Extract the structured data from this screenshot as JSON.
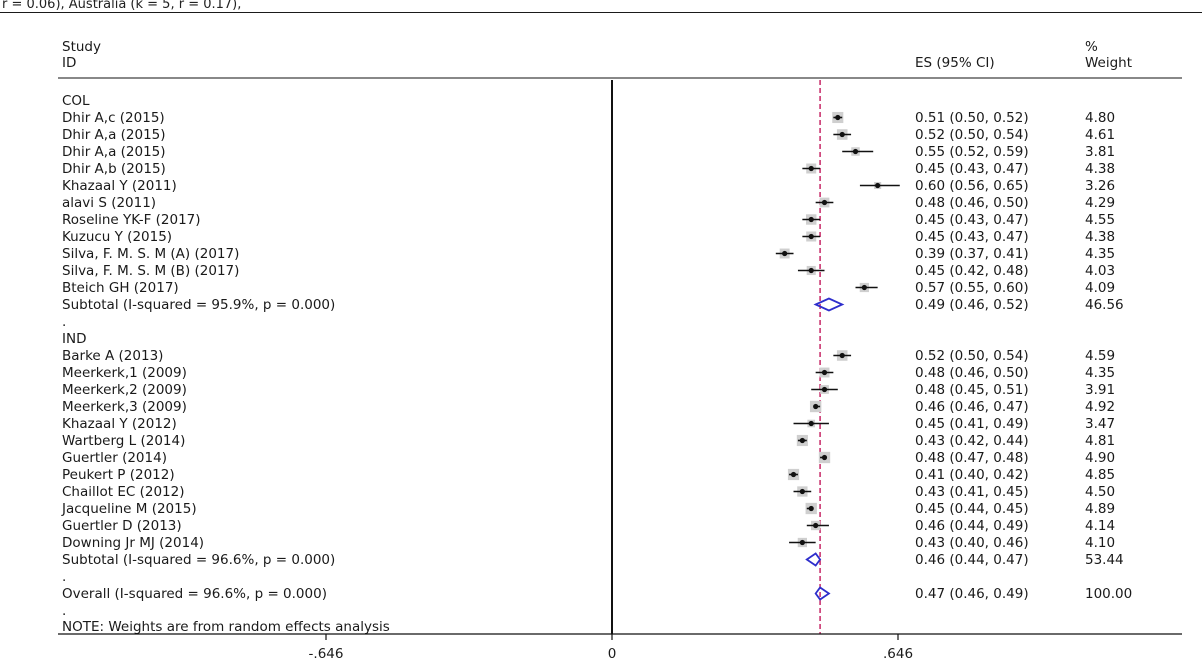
{
  "page": {
    "header_fragment": "   r = 0.06), Australia (k = 5, r = 0.17),"
  },
  "colors": {
    "point": "#111111",
    "box": "#cfcfcf",
    "diamond": "#2e2ecc",
    "reference_line": "#c2185b",
    "axis": "#111111"
  },
  "chart_data": {
    "type": "forest",
    "columns": {
      "study_title_line1": "Study",
      "study_title_line2": "ID",
      "es": "ES (95% CI)",
      "weight_line1": "%",
      "weight_line2": "Weight"
    },
    "xlim": [
      -0.646,
      0.646
    ],
    "xticks": [
      -0.646,
      0,
      0.646
    ],
    "xtick_labels": [
      "-.646",
      "0",
      ".646"
    ],
    "overall_line_x": 0.47,
    "rows": [
      {
        "kind": "header",
        "label": "COL"
      },
      {
        "kind": "study",
        "label": "Dhir A,c (2015)",
        "es": 0.51,
        "lo": 0.5,
        "hi": 0.52,
        "text": "0.51 (0.50, 0.52)",
        "weight": "4.80"
      },
      {
        "kind": "study",
        "label": "Dhir A,a (2015)",
        "es": 0.52,
        "lo": 0.5,
        "hi": 0.54,
        "text": "0.52 (0.50, 0.54)",
        "weight": "4.61"
      },
      {
        "kind": "study",
        "label": "Dhir A,a (2015)",
        "es": 0.55,
        "lo": 0.52,
        "hi": 0.59,
        "text": "0.55 (0.52, 0.59)",
        "weight": "3.81"
      },
      {
        "kind": "study",
        "label": "Dhir A,b (2015)",
        "es": 0.45,
        "lo": 0.43,
        "hi": 0.47,
        "text": "0.45 (0.43, 0.47)",
        "weight": "4.38"
      },
      {
        "kind": "study",
        "label": "Khazaal Y (2011)",
        "es": 0.6,
        "lo": 0.56,
        "hi": 0.65,
        "text": "0.60 (0.56, 0.65)",
        "weight": "3.26"
      },
      {
        "kind": "study",
        "label": "alavi S (2011)",
        "es": 0.48,
        "lo": 0.46,
        "hi": 0.5,
        "text": "0.48 (0.46, 0.50)",
        "weight": "4.29"
      },
      {
        "kind": "study",
        "label": "Roseline YK-F (2017)",
        "es": 0.45,
        "lo": 0.43,
        "hi": 0.47,
        "text": "0.45 (0.43, 0.47)",
        "weight": "4.55"
      },
      {
        "kind": "study",
        "label": "Kuzucu Y (2015)",
        "es": 0.45,
        "lo": 0.43,
        "hi": 0.47,
        "text": "0.45 (0.43, 0.47)",
        "weight": "4.38"
      },
      {
        "kind": "study",
        "label": "Silva, F. M. S. M (A) (2017)",
        "es": 0.39,
        "lo": 0.37,
        "hi": 0.41,
        "text": "0.39 (0.37, 0.41)",
        "weight": "4.35"
      },
      {
        "kind": "study",
        "label": "Silva, F. M. S. M (B) (2017)",
        "es": 0.45,
        "lo": 0.42,
        "hi": 0.48,
        "text": "0.45 (0.42, 0.48)",
        "weight": "4.03"
      },
      {
        "kind": "study",
        "label": "Bteich GH (2017)",
        "es": 0.57,
        "lo": 0.55,
        "hi": 0.6,
        "text": "0.57 (0.55, 0.60)",
        "weight": "4.09"
      },
      {
        "kind": "subtotal",
        "label": "Subtotal  (I-squared = 95.9%, p = 0.000)",
        "es": 0.49,
        "lo": 0.46,
        "hi": 0.52,
        "text": "0.49 (0.46, 0.52)",
        "weight": "46.56"
      },
      {
        "kind": "dot",
        "label": "."
      },
      {
        "kind": "header",
        "label": "IND"
      },
      {
        "kind": "study",
        "label": "Barke A (2013)",
        "es": 0.52,
        "lo": 0.5,
        "hi": 0.54,
        "text": "0.52 (0.50, 0.54)",
        "weight": "4.59"
      },
      {
        "kind": "study",
        "label": "Meerkerk,1 (2009)",
        "es": 0.48,
        "lo": 0.46,
        "hi": 0.5,
        "text": "0.48 (0.46, 0.50)",
        "weight": "4.35"
      },
      {
        "kind": "study",
        "label": "Meerkerk,2 (2009)",
        "es": 0.48,
        "lo": 0.45,
        "hi": 0.51,
        "text": "0.48 (0.45, 0.51)",
        "weight": "3.91"
      },
      {
        "kind": "study",
        "label": "Meerkerk,3 (2009)",
        "es": 0.46,
        "lo": 0.46,
        "hi": 0.47,
        "text": "0.46 (0.46, 0.47)",
        "weight": "4.92"
      },
      {
        "kind": "study",
        "label": "Khazaal Y (2012)",
        "es": 0.45,
        "lo": 0.41,
        "hi": 0.49,
        "text": "0.45 (0.41, 0.49)",
        "weight": "3.47"
      },
      {
        "kind": "study",
        "label": "Wartberg L (2014)",
        "es": 0.43,
        "lo": 0.42,
        "hi": 0.44,
        "text": "0.43 (0.42, 0.44)",
        "weight": "4.81"
      },
      {
        "kind": "study",
        "label": "Guertler (2014)",
        "es": 0.48,
        "lo": 0.47,
        "hi": 0.48,
        "text": "0.48 (0.47, 0.48)",
        "weight": "4.90"
      },
      {
        "kind": "study",
        "label": "Peukert P (2012)",
        "es": 0.41,
        "lo": 0.4,
        "hi": 0.42,
        "text": "0.41 (0.40, 0.42)",
        "weight": "4.85"
      },
      {
        "kind": "study",
        "label": "Chaillot EC (2012)",
        "es": 0.43,
        "lo": 0.41,
        "hi": 0.45,
        "text": "0.43 (0.41, 0.45)",
        "weight": "4.50"
      },
      {
        "kind": "study",
        "label": "Jacqueline M (2015)",
        "es": 0.45,
        "lo": 0.44,
        "hi": 0.45,
        "text": "0.45 (0.44, 0.45)",
        "weight": "4.89"
      },
      {
        "kind": "study",
        "label": "Guertler D (2013)",
        "es": 0.46,
        "lo": 0.44,
        "hi": 0.49,
        "text": "0.46 (0.44, 0.49)",
        "weight": "4.14"
      },
      {
        "kind": "study",
        "label": "Downing Jr MJ (2014)",
        "es": 0.43,
        "lo": 0.4,
        "hi": 0.46,
        "text": "0.43 (0.40, 0.46)",
        "weight": "4.10"
      },
      {
        "kind": "subtotal",
        "label": "Subtotal  (I-squared = 96.6%, p = 0.000)",
        "es": 0.46,
        "lo": 0.44,
        "hi": 0.47,
        "text": "0.46 (0.44, 0.47)",
        "weight": "53.44"
      },
      {
        "kind": "dot",
        "label": "."
      },
      {
        "kind": "overall",
        "label": "Overall  (I-squared = 96.6%, p = 0.000)",
        "es": 0.47,
        "lo": 0.46,
        "hi": 0.49,
        "text": "0.47 (0.46, 0.49)",
        "weight": "100.00"
      },
      {
        "kind": "dot",
        "label": "."
      }
    ],
    "note": "NOTE: Weights are from random effects analysis"
  }
}
